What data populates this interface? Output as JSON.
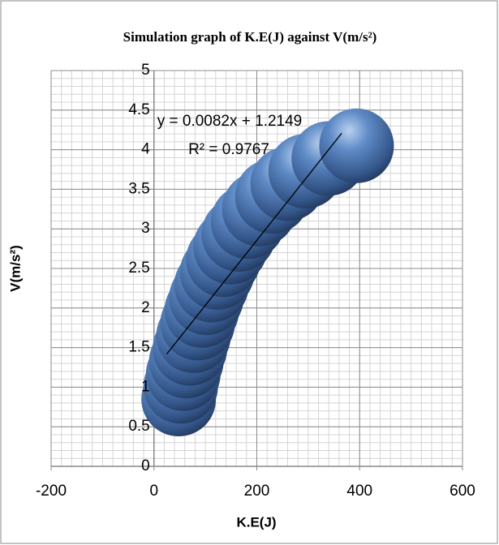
{
  "chart_data": {
    "type": "scatter",
    "title": "Simulation graph of K.E(J) against V(m/s²)",
    "x_label": "K.E(J)",
    "y_label": "V(m/s²)",
    "x": [
      48,
      52,
      57,
      63,
      70,
      77,
      85,
      93,
      102,
      112,
      123,
      135,
      149,
      165,
      183,
      205,
      230,
      260,
      295,
      340,
      394
    ],
    "series": [
      {
        "color": "#4f7ab8",
        "values": [
          0.85,
          1.01,
          1.17,
          1.33,
          1.49,
          1.65,
          1.81,
          1.97,
          2.13,
          2.29,
          2.45,
          2.61,
          2.77,
          2.93,
          3.09,
          3.25,
          3.41,
          3.57,
          3.73,
          3.89,
          4.05
        ]
      }
    ],
    "trendline": {
      "equation": "y = 0.0082x + 1.2149",
      "r_squared": "R² = 0.9767",
      "slope": 0.0082,
      "intercept": 1.2149,
      "x_range": [
        25,
        365
      ]
    },
    "xlim": [
      -200,
      600
    ],
    "xticks": [
      -200,
      0,
      200,
      400,
      600
    ],
    "ylim": [
      0,
      5
    ],
    "yticks": [
      0,
      0.5,
      1,
      1.5,
      2,
      2.5,
      3,
      3.5,
      4,
      4.5,
      5
    ],
    "x_minor_step": 20,
    "y_minor_step": 0.1,
    "grid": true
  }
}
